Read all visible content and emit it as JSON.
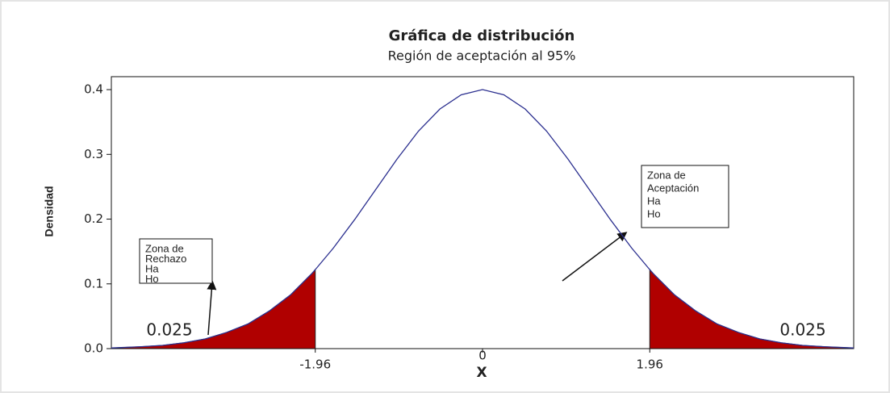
{
  "chart_data": {
    "type": "line",
    "title": "Gráfica de distribución",
    "subtitle": "Región de aceptación al 95%",
    "ylabel": "Densidad",
    "xlabel": "X",
    "x": [
      -4.35,
      -4,
      -3.75,
      -3.5,
      -3.25,
      -3,
      -2.75,
      -2.5,
      -2.25,
      -2,
      -1.96,
      -1.75,
      -1.5,
      -1.25,
      -1,
      -0.75,
      -0.5,
      -0.25,
      0,
      0.25,
      0.5,
      0.75,
      1,
      1.25,
      1.5,
      1.75,
      1.96,
      2,
      2.25,
      2.5,
      2.75,
      3,
      3.25,
      3.5,
      3.75,
      4,
      4.35
    ],
    "values": [
      0.001,
      0.003,
      0.005,
      0.009,
      0.015,
      0.025,
      0.038,
      0.058,
      0.083,
      0.116,
      0.122,
      0.155,
      0.199,
      0.246,
      0.293,
      0.336,
      0.37,
      0.392,
      0.4,
      0.392,
      0.37,
      0.336,
      0.293,
      0.246,
      0.199,
      0.155,
      0.122,
      0.116,
      0.083,
      0.058,
      0.038,
      0.025,
      0.015,
      0.009,
      0.005,
      0.003,
      0.001
    ],
    "color": "#2b2f8f",
    "xlim": [
      -4.35,
      4.35
    ],
    "ylim": [
      0,
      0.42
    ],
    "xticks": [
      -1.96,
      0,
      1.96
    ],
    "yticks": [
      {
        "value": 0,
        "label": "0.0"
      },
      0.1,
      0.2,
      0.3,
      0.4
    ],
    "shaded_tails": {
      "color": "#b00000",
      "bounds": [
        -1.96,
        1.96
      ]
    },
    "tail_areas": [
      0.025,
      0.025
    ],
    "annotations": [
      {
        "lines": [
          "Zona de",
          "Rechazo",
          "Ha",
          "Ho"
        ]
      },
      {
        "lines": [
          "Zona de",
          "Aceptación",
          "Ha",
          "Ho"
        ]
      }
    ]
  }
}
